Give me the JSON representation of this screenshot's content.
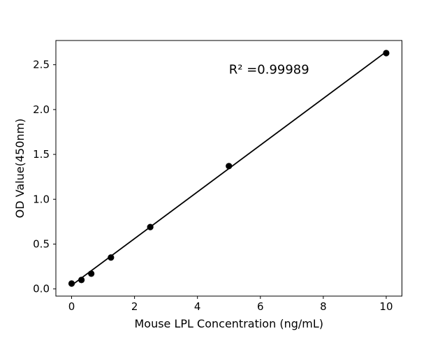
{
  "chart_data": {
    "type": "scatter",
    "title": "",
    "xlabel": "Mouse LPL Concentration (ng/mL)",
    "ylabel": "OD Value(450nm)",
    "x": [
      0,
      0.313,
      0.625,
      1.25,
      2.5,
      5,
      10
    ],
    "y": [
      0.06,
      0.1,
      0.17,
      0.35,
      0.69,
      1.37,
      2.63
    ],
    "trendline": {
      "x": [
        0,
        10
      ],
      "y": [
        0.04,
        2.645
      ]
    },
    "annotation": {
      "text": "R² =0.99989",
      "x": 5.0,
      "y": 2.4
    },
    "xlim": [
      -0.5,
      10.5
    ],
    "ylim": [
      -0.08,
      2.77
    ],
    "xticks": [
      0,
      2,
      4,
      6,
      8,
      10
    ],
    "xtick_labels": [
      "0",
      "2",
      "4",
      "6",
      "8",
      "10"
    ],
    "yticks": [
      0.0,
      0.5,
      1.0,
      1.5,
      2.0,
      2.5
    ],
    "ytick_labels": [
      "0.0",
      "0.5",
      "1.0",
      "1.5",
      "2.0",
      "2.5"
    ],
    "grid": false,
    "legend": "none",
    "marker_color": "#000000",
    "line_color": "#000000",
    "spine_color": "#000000",
    "background": "#ffffff"
  }
}
